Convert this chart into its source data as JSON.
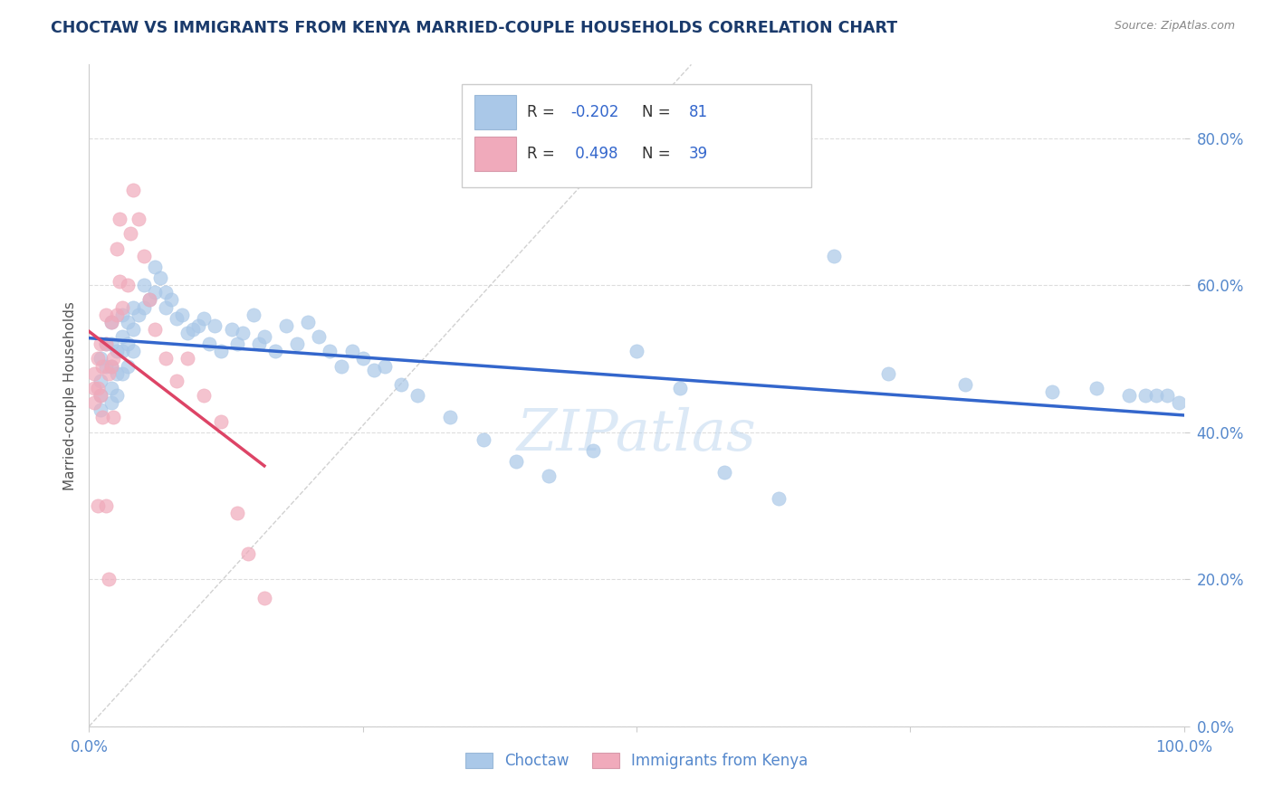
{
  "title": "CHOCTAW VS IMMIGRANTS FROM KENYA MARRIED-COUPLE HOUSEHOLDS CORRELATION CHART",
  "source": "Source: ZipAtlas.com",
  "ylabel": "Married-couple Households",
  "R1": -0.202,
  "N1": 81,
  "R2": 0.498,
  "N2": 39,
  "title_color": "#1a3a6b",
  "source_color": "#888888",
  "blue_scatter_color": "#aac8e8",
  "pink_scatter_color": "#f0aabb",
  "blue_line_color": "#3366cc",
  "pink_line_color": "#dd4466",
  "diag_line_color": "#cccccc",
  "ylabel_color": "#555555",
  "axis_tick_color": "#5588cc",
  "legend_r_color": "#3366cc",
  "legend_text_color": "#333333",
  "watermark": "ZIPatlas",
  "watermark_color": "#bbd4ee",
  "xmin": 0.0,
  "xmax": 1.0,
  "ymin": 0.0,
  "ymax": 0.9,
  "blue_scatter_x": [
    0.01,
    0.01,
    0.01,
    0.01,
    0.015,
    0.015,
    0.02,
    0.02,
    0.02,
    0.02,
    0.02,
    0.025,
    0.025,
    0.025,
    0.03,
    0.03,
    0.03,
    0.03,
    0.035,
    0.035,
    0.035,
    0.04,
    0.04,
    0.04,
    0.045,
    0.05,
    0.05,
    0.055,
    0.06,
    0.06,
    0.065,
    0.07,
    0.07,
    0.075,
    0.08,
    0.085,
    0.09,
    0.095,
    0.1,
    0.105,
    0.11,
    0.115,
    0.12,
    0.13,
    0.135,
    0.14,
    0.15,
    0.155,
    0.16,
    0.17,
    0.18,
    0.19,
    0.2,
    0.21,
    0.22,
    0.23,
    0.24,
    0.25,
    0.26,
    0.27,
    0.285,
    0.3,
    0.33,
    0.36,
    0.39,
    0.42,
    0.46,
    0.5,
    0.54,
    0.58,
    0.63,
    0.68,
    0.73,
    0.8,
    0.88,
    0.92,
    0.95,
    0.965,
    0.975,
    0.985,
    0.995
  ],
  "blue_scatter_y": [
    0.5,
    0.47,
    0.45,
    0.43,
    0.52,
    0.49,
    0.55,
    0.52,
    0.49,
    0.46,
    0.44,
    0.51,
    0.48,
    0.45,
    0.56,
    0.53,
    0.51,
    0.48,
    0.55,
    0.52,
    0.49,
    0.57,
    0.54,
    0.51,
    0.56,
    0.6,
    0.57,
    0.58,
    0.625,
    0.59,
    0.61,
    0.59,
    0.57,
    0.58,
    0.555,
    0.56,
    0.535,
    0.54,
    0.545,
    0.555,
    0.52,
    0.545,
    0.51,
    0.54,
    0.52,
    0.535,
    0.56,
    0.52,
    0.53,
    0.51,
    0.545,
    0.52,
    0.55,
    0.53,
    0.51,
    0.49,
    0.51,
    0.5,
    0.485,
    0.49,
    0.465,
    0.45,
    0.42,
    0.39,
    0.36,
    0.34,
    0.375,
    0.51,
    0.46,
    0.345,
    0.31,
    0.64,
    0.48,
    0.465,
    0.455,
    0.46,
    0.45,
    0.45,
    0.45,
    0.45,
    0.44
  ],
  "pink_scatter_x": [
    0.005,
    0.005,
    0.005,
    0.008,
    0.008,
    0.008,
    0.01,
    0.01,
    0.012,
    0.012,
    0.015,
    0.015,
    0.015,
    0.018,
    0.018,
    0.02,
    0.02,
    0.022,
    0.022,
    0.025,
    0.025,
    0.028,
    0.028,
    0.03,
    0.035,
    0.038,
    0.04,
    0.045,
    0.05,
    0.055,
    0.06,
    0.07,
    0.08,
    0.09,
    0.105,
    0.12,
    0.135,
    0.145,
    0.16
  ],
  "pink_scatter_y": [
    0.48,
    0.46,
    0.44,
    0.5,
    0.46,
    0.3,
    0.52,
    0.45,
    0.49,
    0.42,
    0.56,
    0.52,
    0.3,
    0.48,
    0.2,
    0.55,
    0.49,
    0.5,
    0.42,
    0.65,
    0.56,
    0.69,
    0.605,
    0.57,
    0.6,
    0.67,
    0.73,
    0.69,
    0.64,
    0.58,
    0.54,
    0.5,
    0.47,
    0.5,
    0.45,
    0.415,
    0.29,
    0.235,
    0.175
  ],
  "ytick_positions": [
    0.0,
    0.2,
    0.4,
    0.6,
    0.8
  ],
  "ytick_labels": [
    "0.0%",
    "20.0%",
    "40.0%",
    "60.0%",
    "80.0%"
  ],
  "xtick_positions": [
    0.0,
    0.25,
    0.5,
    0.75,
    1.0
  ],
  "xtick_labels": [
    "0.0%",
    "",
    "",
    "",
    "100.0%"
  ],
  "grid_color": "#dddddd",
  "background_color": "#ffffff",
  "legend_label1": "Choctaw",
  "legend_label2": "Immigrants from Kenya"
}
